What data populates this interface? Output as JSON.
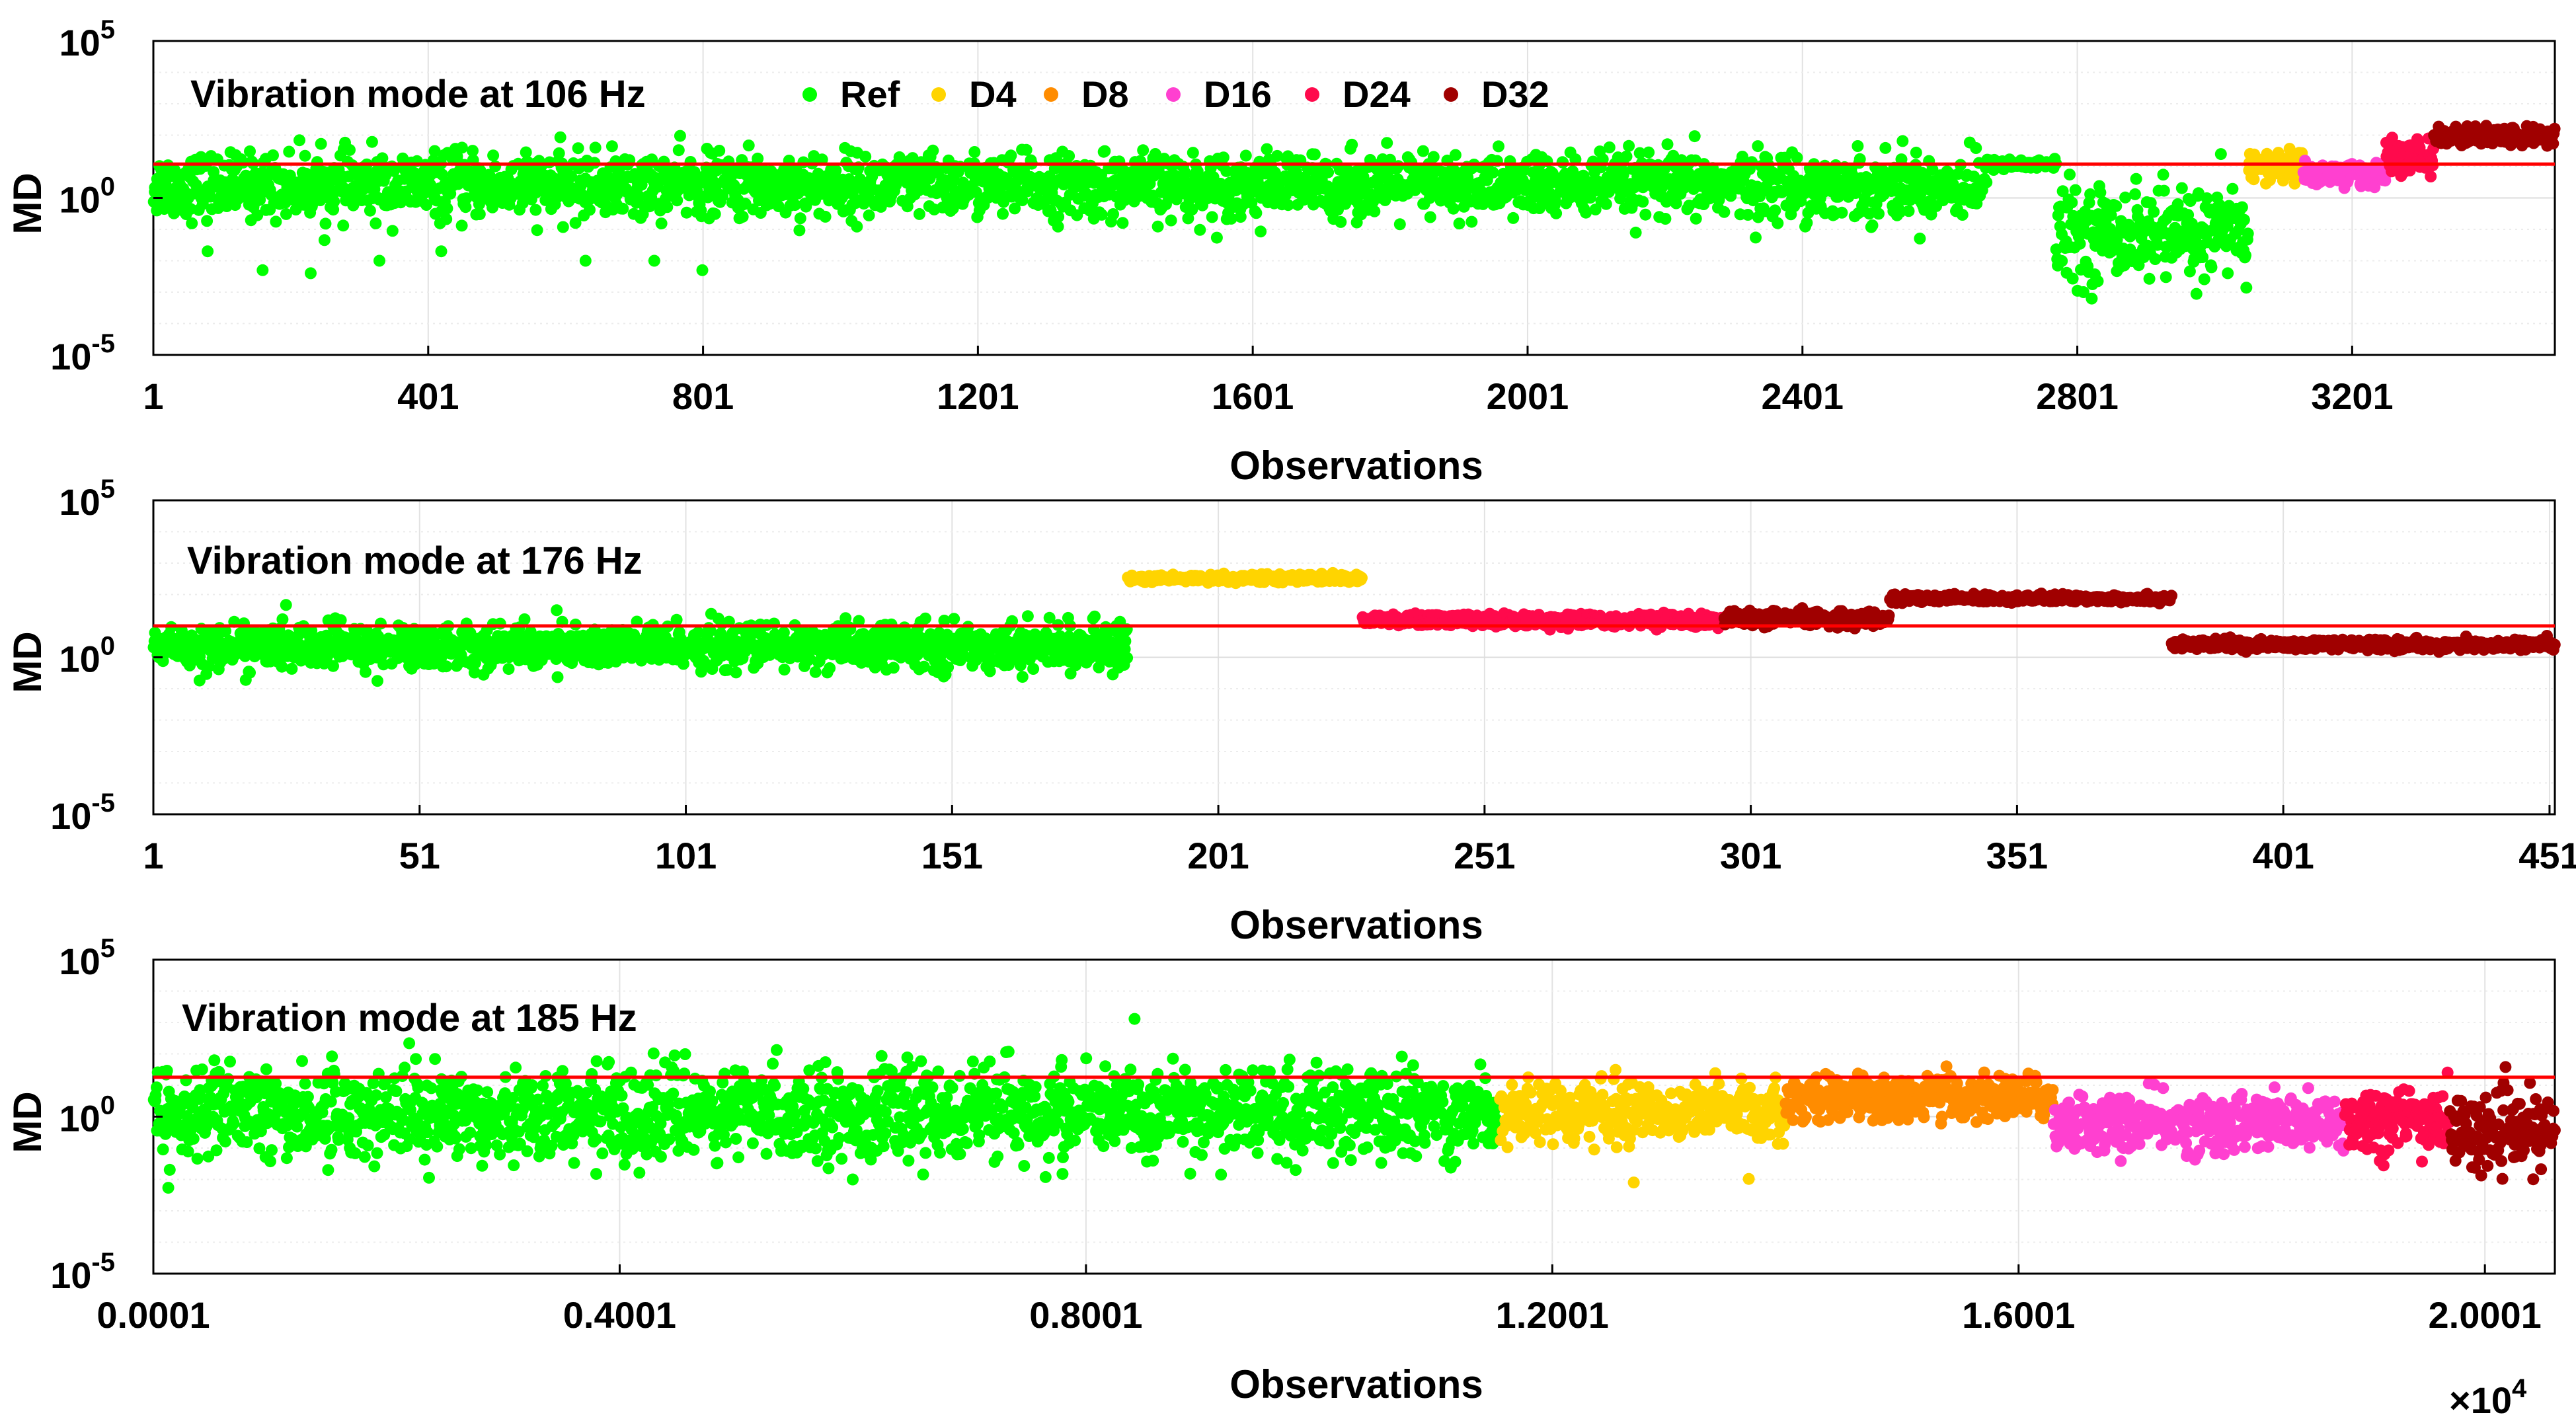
{
  "figure": {
    "shared_xlabel": "Observations",
    "shared_ylabel": "MD"
  },
  "legend": {
    "entries": [
      {
        "name": "Ref",
        "color": "#00ff00"
      },
      {
        "name": "D4",
        "color": "#ffd400"
      },
      {
        "name": "D8",
        "color": "#ff8c00"
      },
      {
        "name": "D16",
        "color": "#ff40d0"
      },
      {
        "name": "D24",
        "color": "#ff0a4c"
      },
      {
        "name": "D32",
        "color": "#a00000"
      }
    ]
  },
  "threshold_color": "#ff0000",
  "chart_data": [
    {
      "type": "scatter",
      "title": "Vibration mode at 106 Hz",
      "xlabel": "Observations",
      "ylabel": "MD",
      "yscale": "log",
      "ylim": [
        1e-05,
        100000.0
      ],
      "xlim": [
        1,
        3496
      ],
      "xticks": [
        "1",
        "401",
        "801",
        "1201",
        "1601",
        "2001",
        "2401",
        "2801",
        "3201"
      ],
      "ytick_exponents": [
        5,
        0,
        -5
      ],
      "threshold": 12,
      "series": [
        {
          "name": "Ref",
          "x_range": [
            1,
            2670
          ],
          "median": 2.5,
          "spread": 0.5,
          "outliers": [
            [
              80,
              0.02
            ],
            [
              160,
              0.005
            ],
            [
              230,
              0.004
            ],
            [
              330,
              0.01
            ],
            [
              420,
              0.02
            ],
            [
              630,
              0.01
            ],
            [
              730,
              0.01
            ],
            [
              800,
              0.005
            ]
          ]
        },
        {
          "name": "Ref",
          "x_range": [
            2670,
            2770
          ],
          "median": 12,
          "spread": 0.08
        },
        {
          "name": "Ref",
          "x_range": [
            2770,
            3050
          ],
          "median": 0.08,
          "spread": 0.7,
          "outliers": [
            [
              2810,
              0.001
            ],
            [
              2930,
              0.003
            ],
            [
              3020,
              0.004
            ]
          ]
        },
        {
          "name": "D4",
          "x_range": [
            3050,
            3130
          ],
          "median": 10,
          "spread": 0.25
        },
        {
          "name": "D16",
          "x_range": [
            3130,
            3250
          ],
          "median": 6,
          "spread": 0.2
        },
        {
          "name": "D24",
          "x_range": [
            3250,
            3320
          ],
          "median": 20,
          "spread": 0.25
        },
        {
          "name": "D32",
          "x_range": [
            3320,
            3496
          ],
          "median": 90,
          "spread": 0.15
        }
      ]
    },
    {
      "type": "scatter",
      "title": "Vibration mode at 176 Hz",
      "xlabel": "Observations",
      "ylabel": "MD",
      "yscale": "log",
      "ylim": [
        1e-05,
        100000.0
      ],
      "xlim": [
        1,
        452
      ],
      "xticks": [
        "1",
        "51",
        "101",
        "151",
        "201",
        "251",
        "301",
        "351",
        "401",
        "451"
      ],
      "ytick_exponents": [
        5,
        0,
        -5
      ],
      "threshold": 10,
      "series": [
        {
          "name": "Ref",
          "x_range": [
            1,
            184
          ],
          "median": 2.2,
          "spread": 0.35
        },
        {
          "name": "D4",
          "x_range": [
            184,
            228
          ],
          "median": 330,
          "spread": 0.06
        },
        {
          "name": "D24",
          "x_range": [
            228,
            296
          ],
          "median": 15,
          "spread": 0.1
        },
        {
          "name": "D32",
          "x_range": [
            296,
            327
          ],
          "median": 17,
          "spread": 0.12
        },
        {
          "name": "D32",
          "x_range": [
            327,
            380
          ],
          "median": 75,
          "spread": 0.06
        },
        {
          "name": "D32",
          "x_range": [
            380,
            452
          ],
          "median": 2.5,
          "spread": 0.08
        }
      ]
    },
    {
      "type": "scatter",
      "title": "Vibration mode at 185 Hz",
      "xlabel": "Observations",
      "ylabel": "MD",
      "yscale": "log",
      "ylim": [
        1e-05,
        100000.0
      ],
      "xlim": [
        1,
        20601
      ],
      "xticks": [
        "0.0001",
        "0.4001",
        "0.8001",
        "1.2001",
        "1.6001",
        "2.0001"
      ],
      "xtick_values": [
        1,
        4001,
        8001,
        12001,
        16001,
        20001
      ],
      "x_multiplier_label": "×10",
      "x_multiplier_exponent": "4",
      "ytick_exponents": [
        5,
        0,
        -5
      ],
      "threshold": 18,
      "series": [
        {
          "name": "Ref",
          "x_range": [
            1,
            11550
          ],
          "median": 1.3,
          "spread": 0.7,
          "outliers": [
            [
              1500,
              0.02
            ],
            [
              3800,
              0.015
            ],
            [
              6000,
              0.01
            ],
            [
              7800,
              0.015
            ],
            [
              9800,
              0.02
            ]
          ]
        },
        {
          "name": "D4",
          "x_range": [
            11550,
            14000
          ],
          "median": 1.5,
          "spread": 0.45,
          "outliers": [
            [
              12700,
              0.008
            ]
          ]
        },
        {
          "name": "D8",
          "x_range": [
            14000,
            16300
          ],
          "median": 4,
          "spread": 0.35
        },
        {
          "name": "D16",
          "x_range": [
            16300,
            18800
          ],
          "median": 0.6,
          "spread": 0.45
        },
        {
          "name": "D24",
          "x_range": [
            18800,
            19700
          ],
          "median": 0.8,
          "spread": 0.55
        },
        {
          "name": "D32",
          "x_range": [
            19700,
            20601
          ],
          "median": 0.3,
          "spread": 0.55
        }
      ]
    }
  ]
}
